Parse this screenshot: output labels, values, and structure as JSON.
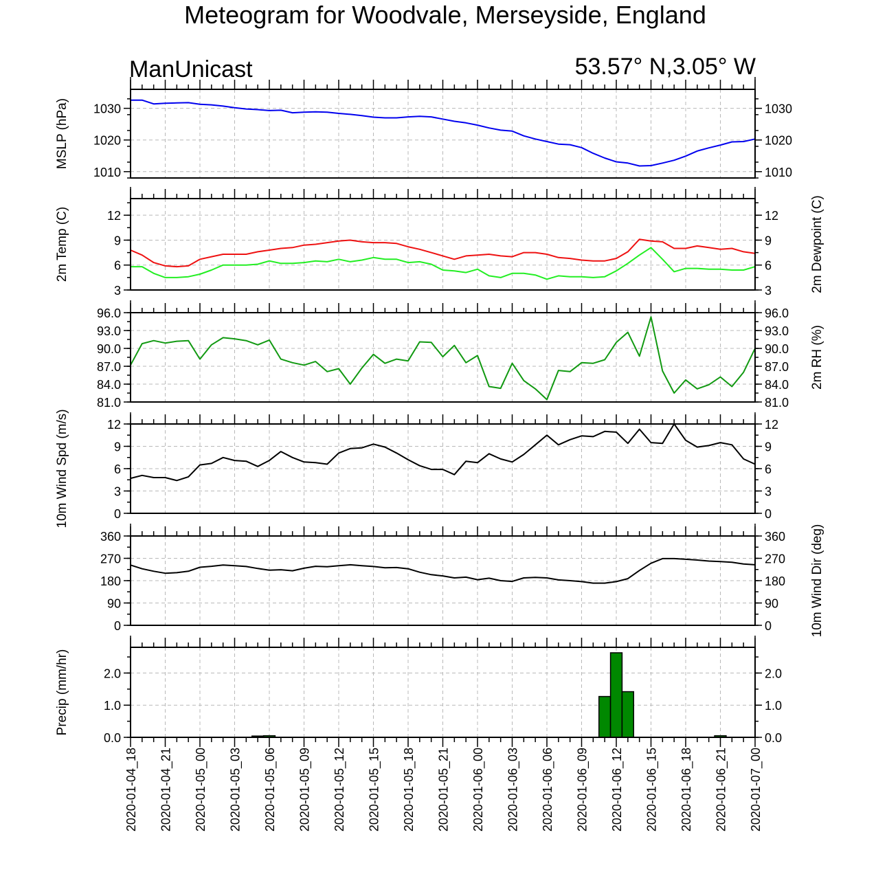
{
  "title": "Meteogram for Woodvale, Merseyside, England",
  "source_label": "ManUnicast",
  "location_label": "53.57° N,3.05° W",
  "colors": {
    "mslp": "#0000ee",
    "temp": "#ee1111",
    "dewpoint": "#22ee22",
    "rh": "#119911",
    "wind": "#000000",
    "precip_fill": "#008800"
  },
  "x_tick_labels": [
    "2020-01-04_18",
    "2020-01-04_21",
    "2020-01-05_00",
    "2020-01-05_03",
    "2020-01-05_06",
    "2020-01-05_09",
    "2020-01-05_12",
    "2020-01-05_15",
    "2020-01-05_18",
    "2020-01-05_21",
    "2020-01-06_00",
    "2020-01-06_03",
    "2020-01-06_06",
    "2020-01-06_09",
    "2020-01-06_12",
    "2020-01-06_15",
    "2020-01-06_18",
    "2020-01-06_21",
    "2020-01-07_00"
  ],
  "chart_data": [
    {
      "type": "line",
      "ylabel": "MSLP (hPa)",
      "ylabel_right": "",
      "ylim": [
        1008,
        1036
      ],
      "yticks": [
        1010,
        1020,
        1030
      ],
      "tick_decimals": 0,
      "x_hours": [
        0,
        1,
        2,
        3,
        4,
        5,
        6,
        7,
        8,
        9,
        10,
        11,
        12,
        13,
        14,
        15,
        16,
        17,
        18,
        19,
        20,
        21,
        22,
        23,
        24,
        25,
        26,
        27,
        28,
        29,
        30,
        31,
        32,
        33,
        34,
        35,
        36,
        37,
        38,
        39,
        40,
        41,
        42,
        43,
        44,
        45,
        46,
        47,
        48,
        49,
        50,
        51,
        52,
        53,
        54
      ],
      "series": [
        {
          "key": "mslp",
          "values": [
            1032.6,
            1032.6,
            1031.4,
            1031.6,
            1031.7,
            1031.8,
            1031.3,
            1031.1,
            1030.7,
            1030.2,
            1029.8,
            1029.6,
            1029.3,
            1029.4,
            1028.6,
            1028.8,
            1028.9,
            1028.8,
            1028.4,
            1028.1,
            1027.7,
            1027.2,
            1027.0,
            1027.0,
            1027.3,
            1027.5,
            1027.3,
            1026.6,
            1025.9,
            1025.4,
            1024.7,
            1023.8,
            1023.1,
            1022.8,
            1021.3,
            1020.3,
            1019.5,
            1018.7,
            1018.5,
            1017.6,
            1015.8,
            1014.3,
            1013.1,
            1012.7,
            1011.8,
            1011.9,
            1012.7,
            1013.6,
            1014.9,
            1016.5,
            1017.5,
            1018.4,
            1019.4,
            1019.5,
            1020.3
          ]
        }
      ]
    },
    {
      "type": "line",
      "ylabel": "2m Temp (C)",
      "ylabel_right": "2m Dewpoint (C)",
      "ylim": [
        3,
        14
      ],
      "yticks": [
        3,
        6,
        9,
        12
      ],
      "tick_decimals": 0,
      "x_hours": [
        0,
        1,
        2,
        3,
        4,
        5,
        6,
        7,
        8,
        9,
        10,
        11,
        12,
        13,
        14,
        15,
        16,
        17,
        18,
        19,
        20,
        21,
        22,
        23,
        24,
        25,
        26,
        27,
        28,
        29,
        30,
        31,
        32,
        33,
        34,
        35,
        36,
        37,
        38,
        39,
        40,
        41,
        42,
        43,
        44,
        45,
        46,
        47,
        48,
        49,
        50,
        51,
        52,
        53,
        54
      ],
      "series": [
        {
          "key": "temp",
          "values": [
            7.8,
            7.2,
            6.3,
            5.9,
            5.8,
            5.9,
            6.7,
            7.0,
            7.3,
            7.3,
            7.3,
            7.6,
            7.8,
            8.0,
            8.1,
            8.4,
            8.5,
            8.7,
            8.9,
            9.0,
            8.8,
            8.7,
            8.7,
            8.6,
            8.2,
            7.9,
            7.5,
            7.1,
            6.7,
            7.1,
            7.2,
            7.3,
            7.1,
            7.0,
            7.5,
            7.5,
            7.3,
            6.9,
            6.8,
            6.6,
            6.5,
            6.5,
            6.8,
            7.6,
            9.1,
            8.9,
            8.8,
            8.0,
            8.0,
            8.3,
            8.1,
            7.9,
            8.0,
            7.6,
            7.4
          ]
        },
        {
          "key": "dewpoint",
          "values": [
            5.8,
            5.8,
            5.0,
            4.5,
            4.5,
            4.6,
            4.9,
            5.4,
            6.0,
            6.0,
            6.0,
            6.1,
            6.5,
            6.2,
            6.2,
            6.3,
            6.5,
            6.4,
            6.7,
            6.4,
            6.6,
            6.9,
            6.7,
            6.7,
            6.3,
            6.4,
            6.1,
            5.4,
            5.3,
            5.1,
            5.5,
            4.7,
            4.5,
            5.0,
            5.0,
            4.8,
            4.3,
            4.7,
            4.6,
            4.6,
            4.5,
            4.6,
            5.3,
            6.2,
            7.2,
            8.1,
            6.7,
            5.2,
            5.6,
            5.6,
            5.5,
            5.5,
            5.4,
            5.4,
            5.8
          ]
        }
      ]
    },
    {
      "type": "line",
      "ylabel": "",
      "ylabel_right": "2m RH (%)",
      "ylim": [
        81.0,
        96.0
      ],
      "yticks": [
        81.0,
        84.0,
        87.0,
        90.0,
        93.0,
        96.0
      ],
      "tick_decimals": 1,
      "x_hours": [
        0,
        1,
        2,
        3,
        4,
        5,
        6,
        7,
        8,
        9,
        10,
        11,
        12,
        13,
        14,
        15,
        16,
        17,
        18,
        19,
        20,
        21,
        22,
        23,
        24,
        25,
        26,
        27,
        28,
        29,
        30,
        31,
        32,
        33,
        34,
        35,
        36,
        37,
        38,
        39,
        40,
        41,
        42,
        43,
        44,
        45,
        46,
        47,
        48,
        49,
        50,
        51,
        52,
        53,
        54
      ],
      "series": [
        {
          "key": "rh",
          "values": [
            87.2,
            90.8,
            91.3,
            90.9,
            91.2,
            91.3,
            88.2,
            90.6,
            91.8,
            91.6,
            91.3,
            90.6,
            91.4,
            88.2,
            87.6,
            87.2,
            87.8,
            86.1,
            86.6,
            84.0,
            86.7,
            89.0,
            87.5,
            88.2,
            87.9,
            91.1,
            91.0,
            88.6,
            90.5,
            87.6,
            88.8,
            83.6,
            83.3,
            87.5,
            84.6,
            83.2,
            81.4,
            86.3,
            86.1,
            87.6,
            87.5,
            88.1,
            91.0,
            92.7,
            88.7,
            95.3,
            86.2,
            82.5,
            84.7,
            83.2,
            83.9,
            85.2,
            83.6,
            86.0,
            90.0
          ]
        }
      ]
    },
    {
      "type": "line",
      "ylabel": "10m Wind Spd (m/s)",
      "ylabel_right": "",
      "ylim": [
        0,
        12
      ],
      "yticks": [
        0,
        3,
        6,
        9,
        12
      ],
      "tick_decimals": 0,
      "x_hours": [
        0,
        1,
        2,
        3,
        4,
        5,
        6,
        7,
        8,
        9,
        10,
        11,
        12,
        13,
        14,
        15,
        16,
        17,
        18,
        19,
        20,
        21,
        22,
        23,
        24,
        25,
        26,
        27,
        28,
        29,
        30,
        31,
        32,
        33,
        34,
        35,
        36,
        37,
        38,
        39,
        40,
        41,
        42,
        43,
        44,
        45,
        46,
        47,
        48,
        49,
        50,
        51,
        52,
        53,
        54
      ],
      "series": [
        {
          "key": "wind",
          "values": [
            4.7,
            5.1,
            4.8,
            4.8,
            4.4,
            4.9,
            6.5,
            6.7,
            7.5,
            7.1,
            7.0,
            6.3,
            7.1,
            8.3,
            7.5,
            6.9,
            6.8,
            6.6,
            8.1,
            8.7,
            8.8,
            9.3,
            8.9,
            8.1,
            7.2,
            6.4,
            5.9,
            5.9,
            5.2,
            7.0,
            6.8,
            8.0,
            7.3,
            6.9,
            7.9,
            9.2,
            10.5,
            9.2,
            9.9,
            10.4,
            10.3,
            11.0,
            10.9,
            9.4,
            11.3,
            9.5,
            9.4,
            12.0,
            9.8,
            8.9,
            9.1,
            9.5,
            9.2,
            7.3,
            6.6
          ]
        }
      ]
    },
    {
      "type": "line",
      "ylabel": "",
      "ylabel_right": "10m Wind Dir (deg)",
      "ylim": [
        0,
        360
      ],
      "yticks": [
        0,
        90,
        180,
        270,
        360
      ],
      "tick_decimals": 0,
      "x_hours": [
        0,
        1,
        2,
        3,
        4,
        5,
        6,
        7,
        8,
        9,
        10,
        11,
        12,
        13,
        14,
        15,
        16,
        17,
        18,
        19,
        20,
        21,
        22,
        23,
        24,
        25,
        26,
        27,
        28,
        29,
        30,
        31,
        32,
        33,
        34,
        35,
        36,
        37,
        38,
        39,
        40,
        41,
        42,
        43,
        44,
        45,
        46,
        47,
        48,
        49,
        50,
        51,
        52,
        53,
        54
      ],
      "series": [
        {
          "key": "wind",
          "values": [
            243,
            228,
            218,
            210,
            212,
            218,
            234,
            238,
            243,
            240,
            237,
            229,
            222,
            224,
            220,
            230,
            238,
            236,
            240,
            244,
            240,
            237,
            232,
            233,
            228,
            214,
            204,
            199,
            191,
            194,
            184,
            190,
            180,
            177,
            191,
            193,
            191,
            183,
            180,
            176,
            170,
            170,
            176,
            188,
            221,
            250,
            269,
            269,
            266,
            263,
            259,
            257,
            254,
            247,
            244
          ]
        }
      ]
    },
    {
      "type": "bar",
      "ylabel": "Precip (mm/hr)",
      "ylabel_right": "",
      "ylim": [
        0,
        2.8
      ],
      "yticks": [
        0.0,
        1.0,
        2.0
      ],
      "tick_decimals": 1,
      "x_hours": [
        11,
        12,
        41,
        42,
        43,
        51
      ],
      "series": [
        {
          "key": "precip",
          "values": [
            0.04,
            0.05,
            1.27,
            2.63,
            1.42,
            0.05
          ]
        }
      ]
    }
  ]
}
